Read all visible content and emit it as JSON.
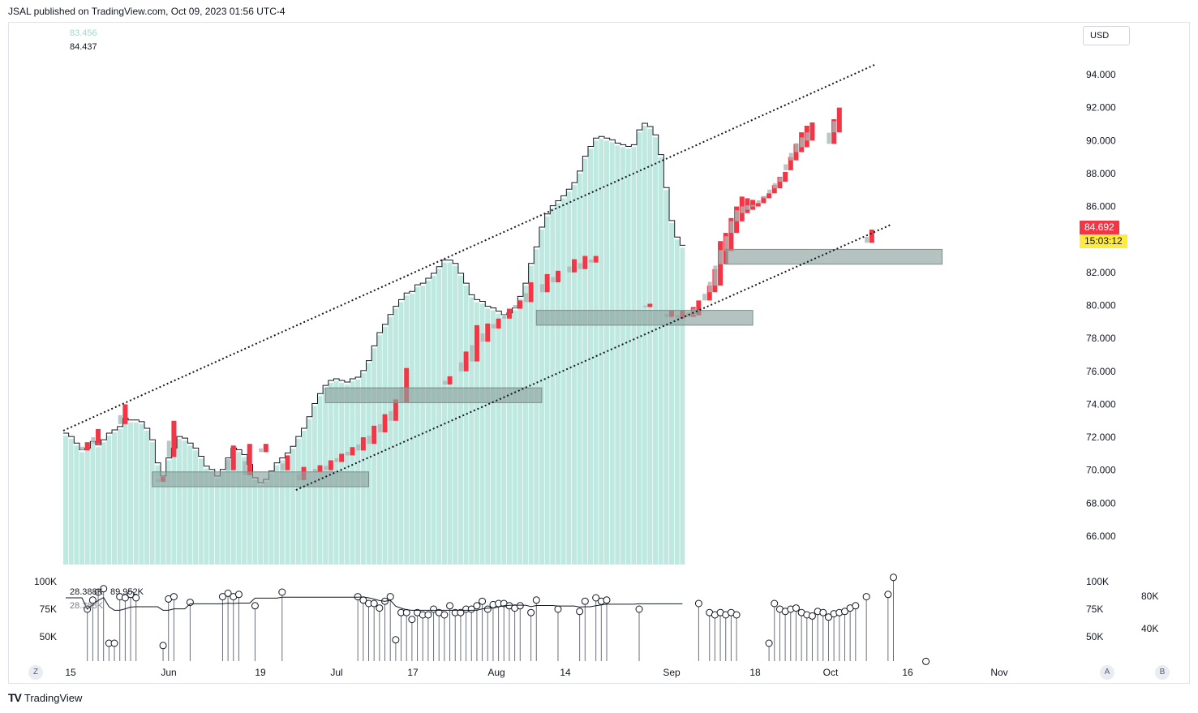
{
  "header": {
    "published": "JSAL published on TradingView.com, Oct 09, 2023 01:56 UTC-4"
  },
  "legend": {
    "value_1": "83.456",
    "value_2": "84.437",
    "value_1_color": "#9ed8cd",
    "value_2_color": "#131722"
  },
  "currency": "USD",
  "last_price": {
    "label": "84.692",
    "countdown": "15:03:12",
    "price_color": "#f23645",
    "countdown_color": "#ffeb3b"
  },
  "footer": {
    "brand": "TradingView",
    "logo_glyph": "TV"
  },
  "buttons": {
    "left": "Z",
    "a": "A",
    "b": "B"
  },
  "colors": {
    "area_fill": "#bfe8e0",
    "area_edge": "#ffffff",
    "down_candle": "#f23645",
    "grey_candle": "#a8b8b4",
    "zone_fill": "#8ea39e",
    "step_line": "#131722",
    "trendline": "#131722",
    "volume_line": "#131722",
    "axis_text": "#131722"
  },
  "chart_data": {
    "type": "area",
    "x_axis_labels": [
      "15",
      "Jun",
      "19",
      "Jul",
      "17",
      "Aug",
      "14",
      "Sep",
      "18",
      "Oct",
      "16",
      "Nov"
    ],
    "y_axis_labels": [
      "94.000",
      "92.000",
      "90.000",
      "88.000",
      "86.000",
      "84.000",
      "82.000",
      "80.000",
      "78.000",
      "76.000",
      "74.000",
      "72.000",
      "70.000",
      "68.000",
      "66.000"
    ],
    "ylim": [
      64.3,
      95.8
    ],
    "price_series": [
      72.1,
      71.9,
      71.5,
      71.1,
      71.2,
      71.6,
      71.4,
      71.7,
      72.1,
      72.3,
      72.5,
      73.0,
      72.9,
      72.9,
      72.8,
      72.4,
      71.7,
      70.3,
      69.5,
      70.6,
      71.2,
      71.9,
      71.8,
      71.5,
      71.2,
      70.7,
      70.1,
      69.9,
      69.5,
      69.9,
      70.6,
      71.2,
      71.1,
      70.8,
      70.2,
      69.4,
      69.1,
      69.3,
      69.8,
      70.3,
      70.6,
      70.9,
      71.3,
      71.9,
      72.4,
      73.1,
      73.9,
      74.5,
      75.0,
      75.3,
      75.4,
      75.3,
      75.2,
      75.4,
      75.5,
      75.9,
      76.5,
      77.4,
      78.2,
      78.7,
      79.3,
      79.8,
      80.2,
      80.6,
      80.7,
      81.1,
      81.2,
      81.5,
      81.8,
      82.2,
      82.6,
      82.6,
      82.4,
      81.8,
      81.2,
      80.5,
      80.2,
      80.1,
      79.8,
      79.7,
      79.5,
      79.3,
      79.4,
      79.7,
      80.4,
      81.2,
      82.4,
      83.4,
      84.6,
      85.4,
      85.9,
      86.2,
      86.5,
      86.9,
      87.3,
      88.0,
      88.9,
      89.5,
      90.0,
      90.1,
      90.0,
      89.9,
      89.7,
      89.6,
      89.5,
      89.6,
      90.5,
      90.9,
      90.7,
      90.2,
      89.0,
      87.0,
      85.0,
      84.0,
      83.5
    ],
    "down_candles": [
      {
        "i": 4,
        "o": 71.7,
        "c": 71.2
      },
      {
        "i": 6,
        "o": 72.5,
        "c": 71.6
      },
      {
        "i": 11,
        "o": 74.0,
        "c": 72.8
      },
      {
        "i": 18,
        "o": 69.3,
        "c": 69.6
      },
      {
        "i": 20,
        "o": 73.0,
        "c": 70.8
      },
      {
        "i": 31,
        "o": 71.5,
        "c": 70.0
      },
      {
        "i": 34,
        "o": 71.6,
        "c": 69.7
      },
      {
        "i": 37,
        "o": 71.6,
        "c": 71.1
      },
      {
        "i": 41,
        "o": 70.9,
        "c": 70.0
      },
      {
        "i": 44,
        "o": 70.2,
        "c": 69.4
      },
      {
        "i": 47,
        "o": 70.3,
        "c": 69.9
      },
      {
        "i": 49,
        "o": 70.6,
        "c": 70.0
      },
      {
        "i": 51,
        "o": 71.0,
        "c": 70.5
      },
      {
        "i": 53,
        "o": 71.4,
        "c": 70.9
      },
      {
        "i": 55,
        "o": 72.0,
        "c": 71.2
      },
      {
        "i": 57,
        "o": 72.7,
        "c": 71.6
      },
      {
        "i": 59,
        "o": 73.4,
        "c": 72.3
      },
      {
        "i": 61,
        "o": 74.3,
        "c": 73.0
      },
      {
        "i": 63,
        "o": 76.2,
        "c": 74.1
      },
      {
        "i": 71,
        "o": 75.7,
        "c": 75.2
      },
      {
        "i": 74,
        "o": 77.2,
        "c": 76.0
      },
      {
        "i": 76,
        "o": 78.8,
        "c": 76.6
      },
      {
        "i": 78,
        "o": 78.9,
        "c": 77.8
      },
      {
        "i": 80,
        "o": 79.2,
        "c": 78.6
      },
      {
        "i": 82,
        "o": 79.8,
        "c": 79.2
      },
      {
        "i": 84,
        "o": 80.3,
        "c": 79.8
      },
      {
        "i": 86,
        "o": 81.4,
        "c": 80.2
      },
      {
        "i": 89,
        "o": 81.9,
        "c": 80.8
      },
      {
        "i": 91,
        "o": 82.1,
        "c": 81.4
      },
      {
        "i": 94,
        "o": 82.8,
        "c": 82.0
      },
      {
        "i": 96,
        "o": 83.0,
        "c": 82.2
      },
      {
        "i": 98,
        "o": 83.0,
        "c": 82.6
      },
      {
        "i": 108,
        "o": 80.1,
        "c": 79.9
      },
      {
        "i": 112,
        "o": 79.7,
        "c": 79.3
      },
      {
        "i": 114,
        "o": 79.7,
        "c": 79.2
      },
      {
        "i": 116,
        "o": 79.9,
        "c": 79.3
      },
      {
        "i": 117,
        "o": 80.3,
        "c": 79.4
      },
      {
        "i": 119,
        "o": 81.2,
        "c": 80.3
      },
      {
        "i": 120,
        "o": 82.2,
        "c": 80.8
      },
      {
        "i": 121,
        "o": 83.9,
        "c": 81.2
      },
      {
        "i": 122,
        "o": 84.4,
        "c": 82.5
      },
      {
        "i": 123,
        "o": 85.3,
        "c": 83.3
      },
      {
        "i": 124,
        "o": 86.0,
        "c": 84.4
      },
      {
        "i": 125,
        "o": 86.6,
        "c": 85.1
      },
      {
        "i": 126,
        "o": 86.5,
        "c": 85.6
      },
      {
        "i": 127,
        "o": 86.4,
        "c": 85.8
      },
      {
        "i": 128,
        "o": 86.2,
        "c": 86.0
      },
      {
        "i": 129,
        "o": 86.6,
        "c": 86.2
      },
      {
        "i": 130,
        "o": 86.8,
        "c": 86.5
      },
      {
        "i": 131,
        "o": 87.3,
        "c": 86.8
      },
      {
        "i": 132,
        "o": 87.8,
        "c": 87.1
      },
      {
        "i": 133,
        "o": 88.1,
        "c": 87.5
      },
      {
        "i": 134,
        "o": 89.0,
        "c": 88.2
      },
      {
        "i": 135,
        "o": 89.8,
        "c": 88.8
      },
      {
        "i": 136,
        "o": 90.5,
        "c": 89.3
      },
      {
        "i": 137,
        "o": 90.9,
        "c": 89.6
      },
      {
        "i": 138,
        "o": 91.1,
        "c": 90.0
      },
      {
        "i": 142,
        "o": 91.3,
        "c": 89.8
      },
      {
        "i": 143,
        "o": 92.0,
        "c": 90.5
      },
      {
        "i": 149,
        "o": 84.6,
        "c": 83.8
      }
    ],
    "zones": [
      {
        "x0": 16,
        "x1": 56,
        "y_low": 69.0,
        "y_high": 69.9
      },
      {
        "x0": 48,
        "x1": 88,
        "y_low": 74.1,
        "y_high": 75.0
      },
      {
        "x0": 87,
        "x1": 127,
        "y_low": 78.8,
        "y_high": 79.7
      },
      {
        "x0": 122,
        "x1": 162,
        "y_low": 82.5,
        "y_high": 83.4
      }
    ],
    "trendlines": [
      {
        "x0": 0,
        "y0": 72.4,
        "x1": 150,
        "y1": 94.6
      },
      {
        "x0": 43,
        "y0": 68.8,
        "x1": 153,
        "y1": 84.9
      }
    ],
    "volume": {
      "axis_labels_left": [
        "100K",
        "75K",
        "50K"
      ],
      "axis_labels_right_inner": [
        "100K",
        "75K",
        "50K"
      ],
      "axis_labels_right_outer": [
        "80K",
        "40K"
      ],
      "ylim": [
        28000,
        105000
      ],
      "text_1": "28.388K",
      "text_2": "89.952K",
      "text_3": "28.388K",
      "bars": [
        0,
        0,
        0,
        0,
        75,
        83,
        90,
        93,
        45,
        45,
        86,
        85,
        88,
        85,
        0,
        0,
        0,
        0,
        43,
        84,
        86,
        0,
        0,
        81,
        0,
        0,
        0,
        0,
        0,
        86,
        89,
        86,
        88,
        0,
        0,
        78,
        0,
        0,
        0,
        0,
        90,
        0,
        0,
        0,
        0,
        0,
        0,
        0,
        0,
        0,
        0,
        0,
        0,
        0,
        86,
        83,
        80,
        80,
        76,
        82,
        86,
        48,
        72,
        72,
        66,
        72,
        70,
        70,
        75,
        72,
        70,
        78,
        72,
        72,
        75,
        75,
        78,
        82,
        75,
        79,
        80,
        80,
        78,
        76,
        78,
        0,
        72,
        83,
        0,
        0,
        0,
        75,
        0,
        0,
        0,
        73,
        82,
        0,
        85,
        82,
        83,
        0,
        0,
        0,
        0,
        0,
        75,
        0,
        0,
        0,
        0,
        0,
        0,
        0,
        0,
        0,
        0,
        80,
        0,
        72,
        70,
        72,
        70,
        72,
        70,
        0,
        0,
        0,
        0,
        0,
        45,
        80,
        75,
        73,
        75,
        76,
        72,
        70,
        69,
        73,
        72,
        68,
        71,
        72,
        73,
        76,
        78,
        0,
        86,
        0,
        0,
        0,
        88,
        103,
        0,
        0,
        0,
        0,
        0,
        29
      ]
    }
  }
}
